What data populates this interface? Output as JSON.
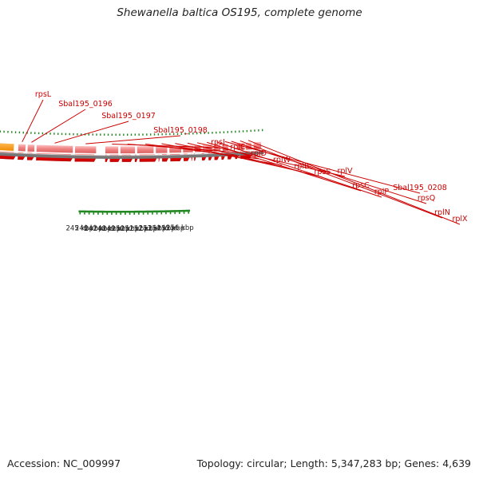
{
  "title": "Shewanella baltica OS195, complete genome",
  "footer": {
    "accession": "Accession: NC_009997",
    "summary": "Topology: circular; Length: 5,347,283 bp; Genes: 4,639"
  },
  "colors": {
    "gene_dark": "#ee0000",
    "gene_light": "#f08080",
    "gene_orange": "#ff9900",
    "backbone": "#888888",
    "tick": "#228822",
    "label": "#cc0000"
  },
  "scale_labels": [
    "245 kbp",
    "246 kbp",
    "247 kbp",
    "248 kbp",
    "249 kbp",
    "250 kbp",
    "251 kbp",
    "252 kbp",
    "253 kbp",
    "254 kbp",
    "255 kbp",
    "256 kbp"
  ],
  "gene_labels": [
    "rpsL",
    "Sbal195_0196",
    "Sbal195_0197",
    "Sbal195_0198",
    "rpsJ",
    "rplC",
    "rplD",
    "rplW",
    "rplB",
    "rpsS",
    "rplV",
    "rpsC",
    "rplP",
    "Sbal195_0208",
    "rpsQ",
    "rplN",
    "rplX"
  ]
}
